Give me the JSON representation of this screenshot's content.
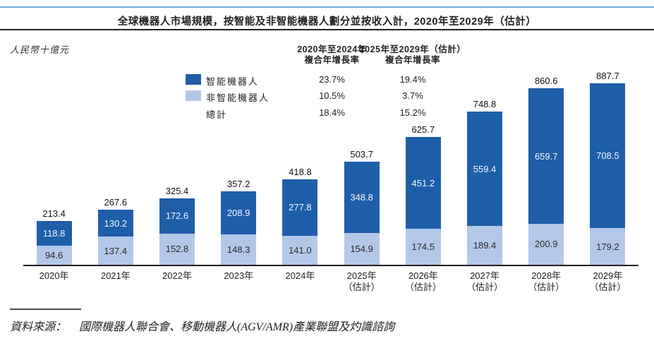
{
  "page": {
    "footnote_label": "資料來源：",
    "footnote_text": "國際機器人聯合會、移動機器人(AGV/AMR)產業聯盟及灼識諮詢"
  },
  "colors": {
    "top_rule": "#6CAFE0",
    "title_rule": "#231F20",
    "axis": "#231F20",
    "intelligent": "#1F5EA9",
    "non_intelligent": "#B3C7E9"
  },
  "chart_data": {
    "type": "bar",
    "stacked": true,
    "grid": false,
    "legend_position": "top-left",
    "title": "全球機器人市場規模，按智能及非智能機器人劃分並按收入計，2020年至2029年（估計）",
    "ylabel": "人民幣十億元",
    "categories": [
      "2020年",
      "2021年",
      "2022年",
      "2023年",
      "2024年",
      "2025年",
      "2026年",
      "2027年",
      "2028年",
      "2029年"
    ],
    "category_sublabels": [
      "",
      "",
      "",
      "",
      "",
      "（估計）",
      "（估計）",
      "（估計）",
      "（估計）",
      "（估計）"
    ],
    "series": [
      {
        "name": "智能機器人",
        "color": "#1F5EA9",
        "values": [
          118.8,
          130.2,
          172.6,
          208.9,
          277.8,
          348.8,
          451.2,
          559.4,
          659.7,
          708.5
        ]
      },
      {
        "name": "非智能機器人",
        "color": "#B3C7E9",
        "values": [
          94.6,
          137.4,
          152.8,
          148.3,
          141.0,
          154.9,
          174.5,
          189.4,
          200.9,
          179.2
        ]
      }
    ],
    "totals": [
      213.4,
      267.6,
      325.4,
      357.2,
      418.8,
      503.7,
      625.7,
      748.8,
      860.6,
      887.7
    ],
    "ylim": [
      0,
      900
    ],
    "cagr": {
      "header_2020_2024": [
        "2020年至2024年",
        "複合年增長率"
      ],
      "header_2025_2029": [
        "2025年至2029年（估計）",
        "複合年增長率"
      ],
      "rows": [
        {
          "label": "智能機器人",
          "cagr_2020_2024": "23.7%",
          "cagr_2025_2029": "19.4%"
        },
        {
          "label": "非智能機器人",
          "cagr_2020_2024": "10.5%",
          "cagr_2025_2029": "3.7%"
        },
        {
          "label": "總計",
          "cagr_2020_2024": "18.4%",
          "cagr_2025_2029": "15.2%"
        }
      ]
    }
  }
}
